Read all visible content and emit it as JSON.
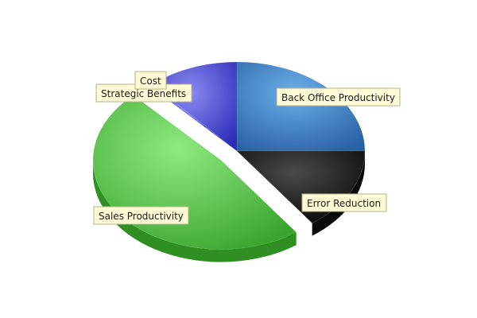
{
  "chart_data": {
    "type": "pie",
    "style": "3d",
    "slices": [
      {
        "label": "Back Office Productivity",
        "value": 25,
        "color": "#3b7fc4"
      },
      {
        "label": "Error Reduction",
        "value": 15,
        "color": "#1c1c1c"
      },
      {
        "label": "Sales Productivity",
        "value": 48,
        "color": "#4cb63d",
        "exploded": true
      },
      {
        "label": "Strategic Benefits",
        "value": 0.5,
        "color": "#5a5ad8"
      },
      {
        "label": "Cost",
        "value": 11.5,
        "color": "#3a3ad0"
      }
    ]
  }
}
